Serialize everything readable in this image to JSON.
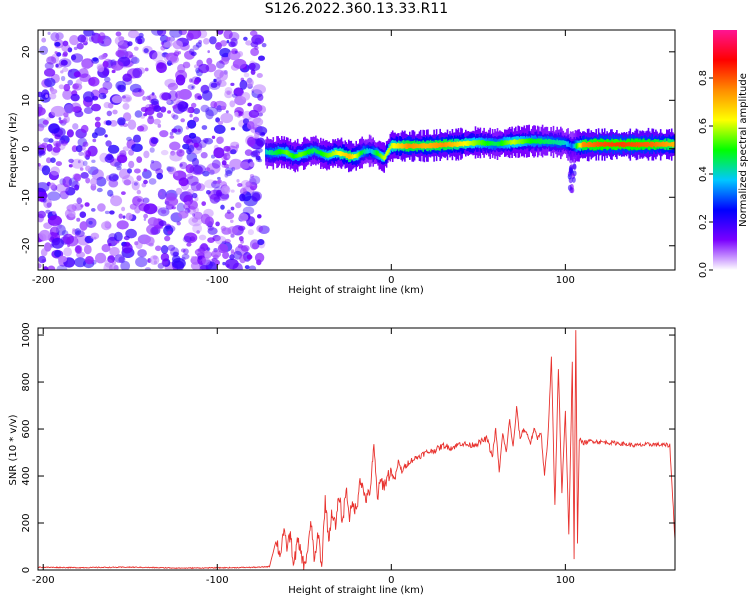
{
  "title": "S126.2022.360.13.33.R11",
  "chart_data": [
    {
      "type": "heatmap",
      "title": "",
      "xlabel": "Height of straight line (km)",
      "ylabel": "Frequency (Hz)",
      "xlim": [
        -203,
        163
      ],
      "ylim": [
        -25,
        24.5
      ],
      "x_ticks": [
        -200,
        -100,
        0,
        100
      ],
      "x_tick_labels": [
        "-200",
        "-100",
        "0",
        "100"
      ],
      "y_ticks": [
        20,
        10,
        0,
        -10,
        -20
      ],
      "y_tick_labels": [
        "20",
        "10",
        "0",
        "-10",
        "-20"
      ],
      "noise_region_x": [
        -203,
        -73
      ],
      "signal_track": {
        "x": [
          -72,
          -68,
          -64,
          -60,
          -56,
          -52,
          -48,
          -44,
          -40,
          -36,
          -32,
          -28,
          -24,
          -20,
          -16,
          -12,
          -8,
          -4,
          0,
          10,
          20,
          30,
          40,
          50,
          60,
          70,
          80,
          90,
          100,
          104,
          110,
          120,
          130,
          140,
          150,
          163
        ],
        "frequency": [
          -0.7,
          -0.9,
          -0.6,
          -0.8,
          -1.6,
          -1.2,
          -0.7,
          -0.3,
          -1.0,
          -1.4,
          -0.8,
          -1.0,
          -1.6,
          -1.5,
          -0.6,
          -0.4,
          -1.0,
          -1.9,
          0.6,
          0.6,
          0.6,
          0.8,
          1.0,
          1.3,
          1.0,
          1.4,
          1.6,
          1.5,
          1.2,
          0.5,
          0.8,
          0.9,
          0.9,
          0.9,
          0.9,
          0.9
        ],
        "amplitude": [
          0.4,
          0.45,
          0.5,
          0.55,
          0.5,
          0.55,
          0.5,
          0.45,
          0.5,
          0.55,
          0.6,
          0.65,
          0.7,
          0.6,
          0.45,
          0.35,
          0.5,
          0.6,
          0.6,
          0.75,
          0.7,
          0.75,
          0.65,
          0.55,
          0.45,
          0.6,
          0.5,
          0.45,
          0.4,
          0.3,
          0.75,
          0.8,
          0.82,
          0.8,
          0.78,
          0.7
        ]
      },
      "noise_amplitude_range": [
        0.05,
        0.22
      ],
      "colorbar": {
        "label": "Normalized spectral amplitude",
        "range": [
          0,
          1
        ],
        "ticks": [
          0.0,
          0.2,
          0.4,
          0.6,
          0.8
        ],
        "tick_labels": [
          "0.0",
          "0.2",
          "0.4",
          "0.6",
          "0.8"
        ],
        "colormap": [
          "#ffffff",
          "#7a00ff",
          "#0000ff",
          "#00c8ff",
          "#00ff00",
          "#ffff00",
          "#ff8c00",
          "#ff0000",
          "#ff1493"
        ]
      },
      "grid": false,
      "legend": "none"
    },
    {
      "type": "line",
      "title": "",
      "xlabel": "Height of straight line (km)",
      "ylabel": "SNR (10 * v/v)",
      "xlim": [
        -203,
        163
      ],
      "ylim": [
        0,
        1030
      ],
      "x_ticks": [
        -200,
        -100,
        0,
        100
      ],
      "x_tick_labels": [
        "-200",
        "-100",
        "0",
        "100"
      ],
      "y_ticks": [
        0,
        200,
        400,
        600,
        800,
        1000
      ],
      "y_tick_labels": [
        "0",
        "200",
        "400",
        "600",
        "800",
        "1000"
      ],
      "series": [
        {
          "color": "#e8322e",
          "x": [
            -203,
            -180,
            -150,
            -120,
            -90,
            -75,
            -70,
            -66,
            -64,
            -62,
            -60,
            -58,
            -56,
            -54,
            -52,
            -50,
            -48,
            -46,
            -44,
            -42,
            -40,
            -38,
            -36,
            -34,
            -32,
            -30,
            -28,
            -26,
            -24,
            -22,
            -20,
            -18,
            -16,
            -14,
            -12,
            -10,
            -8,
            -6,
            -4,
            -2,
            0,
            2,
            4,
            6,
            8,
            10,
            15,
            20,
            25,
            30,
            35,
            40,
            45,
            50,
            55,
            58,
            60,
            62,
            64,
            66,
            68,
            70,
            72,
            74,
            76,
            78,
            80,
            82,
            84,
            86,
            88,
            90,
            92,
            94,
            96,
            98,
            100,
            102,
            104,
            105,
            106,
            107,
            108,
            110,
            115,
            120,
            130,
            140,
            150,
            160,
            163
          ],
          "y": [
            12,
            10,
            12,
            8,
            10,
            12,
            15,
            130,
            60,
            160,
            100,
            150,
            20,
            120,
            80,
            10,
            90,
            200,
            30,
            160,
            10,
            300,
            130,
            250,
            180,
            320,
            200,
            350,
            230,
            280,
            250,
            400,
            330,
            300,
            350,
            520,
            310,
            380,
            360,
            400,
            420,
            380,
            460,
            420,
            440,
            460,
            480,
            500,
            510,
            530,
            520,
            540,
            530,
            540,
            560,
            480,
            600,
            420,
            580,
            500,
            640,
            520,
            690,
            560,
            600,
            580,
            540,
            600,
            560,
            590,
            400,
            560,
            900,
            270,
            860,
            330,
            680,
            150,
            880,
            40,
            1030,
            120,
            560,
            540,
            550,
            545,
            540,
            530,
            535,
            530,
            130
          ]
        }
      ],
      "grid": false,
      "legend": "none"
    }
  ]
}
